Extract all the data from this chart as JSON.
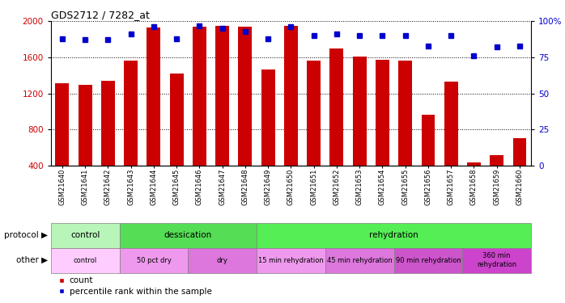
{
  "title": "GDS2712 / 7282_at",
  "samples": [
    "GSM21640",
    "GSM21641",
    "GSM21642",
    "GSM21643",
    "GSM21644",
    "GSM21645",
    "GSM21646",
    "GSM21647",
    "GSM21648",
    "GSM21649",
    "GSM21650",
    "GSM21651",
    "GSM21652",
    "GSM21653",
    "GSM21654",
    "GSM21655",
    "GSM21656",
    "GSM21657",
    "GSM21658",
    "GSM21659",
    "GSM21660"
  ],
  "counts": [
    1310,
    1290,
    1340,
    1560,
    1930,
    1420,
    1940,
    1950,
    1940,
    1460,
    1950,
    1560,
    1700,
    1610,
    1570,
    1560,
    960,
    1330,
    430,
    510,
    700
  ],
  "percentiles": [
    88,
    87,
    87,
    91,
    96,
    88,
    97,
    95,
    93,
    88,
    96,
    90,
    91,
    90,
    90,
    90,
    83,
    90,
    76,
    82,
    83
  ],
  "bar_color": "#cc0000",
  "percentile_color": "#0000cc",
  "ylim_left": [
    400,
    2000
  ],
  "ylim_right": [
    0,
    100
  ],
  "yticks_left": [
    400,
    800,
    1200,
    1600,
    2000
  ],
  "yticks_right": [
    0,
    25,
    50,
    75,
    100
  ],
  "proto_segments": [
    [
      0,
      3,
      "#b8f5b8",
      "control"
    ],
    [
      3,
      9,
      "#55dd55",
      "dessication"
    ],
    [
      9,
      21,
      "#55ee55",
      "rehydration"
    ]
  ],
  "other_segments": [
    [
      0,
      3,
      "#ffccff",
      "control"
    ],
    [
      3,
      6,
      "#ee99ee",
      "50 pct dry"
    ],
    [
      6,
      9,
      "#dd77dd",
      "dry"
    ],
    [
      9,
      12,
      "#ee99ee",
      "15 min rehydration"
    ],
    [
      12,
      15,
      "#dd77dd",
      "45 min rehydration"
    ],
    [
      15,
      18,
      "#cc55cc",
      "90 min rehydration"
    ],
    [
      18,
      21,
      "#cc44cc",
      "360 min\nrehydration"
    ]
  ],
  "legend_labels": [
    "count",
    "percentile rank within the sample"
  ],
  "legend_colors": [
    "#cc0000",
    "#0000cc"
  ]
}
